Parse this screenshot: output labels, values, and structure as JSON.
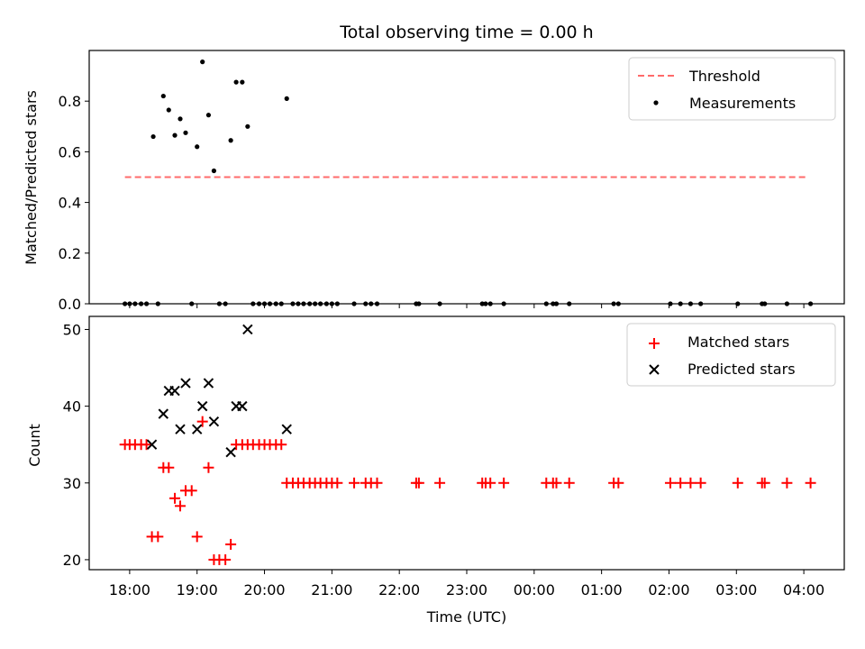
{
  "title": "Total observing time = 0.00 h",
  "chart_data": [
    {
      "type": "scatter",
      "ylabel": "Matched/Predicted stars",
      "xlabel": "",
      "xlim": [
        17.4,
        28.6
      ],
      "ylim": [
        0,
        1.0
      ],
      "yticks": [
        0.0,
        0.2,
        0.4,
        0.6,
        0.8
      ],
      "ytick_labels": [
        "0.0",
        "0.2",
        "0.4",
        "0.6",
        "0.8"
      ],
      "legend": {
        "placement": "upper-right",
        "entries": [
          "Threshold",
          "Measurements"
        ]
      },
      "threshold": {
        "name": "Threshold",
        "value": 0.5,
        "x_range": [
          17.93,
          28.03
        ],
        "color": "#ff6b6b"
      },
      "series": [
        {
          "name": "Measurements",
          "color": "#000000",
          "points": [
            [
              18.35,
              0.66
            ],
            [
              18.5,
              0.82
            ],
            [
              18.58,
              0.765
            ],
            [
              18.67,
              0.665
            ],
            [
              18.75,
              0.73
            ],
            [
              18.83,
              0.675
            ],
            [
              19.0,
              0.62
            ],
            [
              19.08,
              0.955
            ],
            [
              19.17,
              0.745
            ],
            [
              19.25,
              0.525
            ],
            [
              19.5,
              0.645
            ],
            [
              19.58,
              0.875
            ],
            [
              19.67,
              0.875
            ],
            [
              19.75,
              0.7
            ],
            [
              20.33,
              0.81
            ],
            [
              17.93,
              0
            ],
            [
              18.0,
              0
            ],
            [
              18.08,
              0
            ],
            [
              18.17,
              0
            ],
            [
              18.25,
              0
            ],
            [
              18.42,
              0
            ],
            [
              18.92,
              0
            ],
            [
              19.33,
              0
            ],
            [
              19.42,
              0
            ],
            [
              19.83,
              0
            ],
            [
              19.92,
              0
            ],
            [
              20.0,
              0
            ],
            [
              20.08,
              0
            ],
            [
              20.17,
              0
            ],
            [
              20.25,
              0
            ],
            [
              20.42,
              0
            ],
            [
              20.5,
              0
            ],
            [
              20.58,
              0
            ],
            [
              20.67,
              0
            ],
            [
              20.75,
              0
            ],
            [
              20.83,
              0
            ],
            [
              20.92,
              0
            ],
            [
              21.0,
              0
            ],
            [
              21.08,
              0
            ],
            [
              21.33,
              0
            ],
            [
              21.5,
              0
            ],
            [
              21.58,
              0
            ],
            [
              21.67,
              0
            ],
            [
              22.25,
              0
            ],
            [
              22.29,
              0
            ],
            [
              22.6,
              0
            ],
            [
              23.23,
              0
            ],
            [
              23.28,
              0
            ],
            [
              23.35,
              0
            ],
            [
              23.55,
              0
            ],
            [
              24.18,
              0
            ],
            [
              24.28,
              0
            ],
            [
              24.33,
              0
            ],
            [
              24.52,
              0
            ],
            [
              25.18,
              0
            ],
            [
              25.25,
              0
            ],
            [
              26.02,
              0
            ],
            [
              26.17,
              0
            ],
            [
              26.32,
              0
            ],
            [
              26.47,
              0
            ],
            [
              27.02,
              0
            ],
            [
              27.38,
              0
            ],
            [
              27.42,
              0
            ],
            [
              27.75,
              0
            ],
            [
              28.1,
              0
            ]
          ]
        }
      ]
    },
    {
      "type": "scatter",
      "ylabel": "Count",
      "xlabel": "Time (UTC)",
      "xlim": [
        17.4,
        28.6
      ],
      "ylim": [
        18.7,
        51.7
      ],
      "yticks": [
        20,
        30,
        40,
        50
      ],
      "ytick_labels": [
        "20",
        "30",
        "40",
        "50"
      ],
      "xticks": [
        18,
        19,
        20,
        21,
        22,
        23,
        24,
        25,
        26,
        27,
        28
      ],
      "xtick_labels": [
        "18:00",
        "19:00",
        "20:00",
        "21:00",
        "22:00",
        "23:00",
        "00:00",
        "01:00",
        "02:00",
        "03:00",
        "04:00"
      ],
      "legend": {
        "placement": "upper-right",
        "entries": [
          "Matched stars",
          "Predicted stars"
        ]
      },
      "series": [
        {
          "name": "Matched stars",
          "marker": "plus",
          "color": "#ff0000",
          "points": [
            [
              17.93,
              35
            ],
            [
              18.0,
              35
            ],
            [
              18.08,
              35
            ],
            [
              18.17,
              35
            ],
            [
              18.25,
              35
            ],
            [
              18.33,
              23
            ],
            [
              18.42,
              23
            ],
            [
              18.5,
              32
            ],
            [
              18.58,
              32
            ],
            [
              18.67,
              28
            ],
            [
              18.75,
              27
            ],
            [
              18.83,
              29
            ],
            [
              18.92,
              29
            ],
            [
              19.0,
              23
            ],
            [
              19.08,
              38
            ],
            [
              19.17,
              32
            ],
            [
              19.25,
              20
            ],
            [
              19.33,
              20
            ],
            [
              19.42,
              20
            ],
            [
              19.5,
              22
            ],
            [
              19.58,
              35
            ],
            [
              19.67,
              35
            ],
            [
              19.75,
              35
            ],
            [
              19.83,
              35
            ],
            [
              19.92,
              35
            ],
            [
              20.0,
              35
            ],
            [
              20.08,
              35
            ],
            [
              20.17,
              35
            ],
            [
              20.25,
              35
            ],
            [
              20.33,
              30
            ],
            [
              20.42,
              30
            ],
            [
              20.5,
              30
            ],
            [
              20.58,
              30
            ],
            [
              20.67,
              30
            ],
            [
              20.75,
              30
            ],
            [
              20.83,
              30
            ],
            [
              20.92,
              30
            ],
            [
              21.0,
              30
            ],
            [
              21.08,
              30
            ],
            [
              21.33,
              30
            ],
            [
              21.5,
              30
            ],
            [
              21.58,
              30
            ],
            [
              21.67,
              30
            ],
            [
              22.25,
              30
            ],
            [
              22.29,
              30
            ],
            [
              22.6,
              30
            ],
            [
              23.23,
              30
            ],
            [
              23.28,
              30
            ],
            [
              23.35,
              30
            ],
            [
              23.55,
              30
            ],
            [
              24.18,
              30
            ],
            [
              24.28,
              30
            ],
            [
              24.33,
              30
            ],
            [
              24.52,
              30
            ],
            [
              25.18,
              30
            ],
            [
              25.25,
              30
            ],
            [
              26.02,
              30
            ],
            [
              26.17,
              30
            ],
            [
              26.32,
              30
            ],
            [
              26.47,
              30
            ],
            [
              27.02,
              30
            ],
            [
              27.38,
              30
            ],
            [
              27.42,
              30
            ],
            [
              27.75,
              30
            ],
            [
              28.1,
              30
            ]
          ]
        },
        {
          "name": "Predicted stars",
          "marker": "x",
          "color": "#000000",
          "points": [
            [
              18.33,
              35
            ],
            [
              18.5,
              39
            ],
            [
              18.58,
              42
            ],
            [
              18.67,
              42
            ],
            [
              18.75,
              37
            ],
            [
              18.83,
              43
            ],
            [
              19.0,
              37
            ],
            [
              19.08,
              40
            ],
            [
              19.17,
              43
            ],
            [
              19.25,
              38
            ],
            [
              19.5,
              34
            ],
            [
              19.58,
              40
            ],
            [
              19.67,
              40
            ],
            [
              19.75,
              50
            ],
            [
              20.33,
              37
            ]
          ]
        }
      ]
    }
  ]
}
